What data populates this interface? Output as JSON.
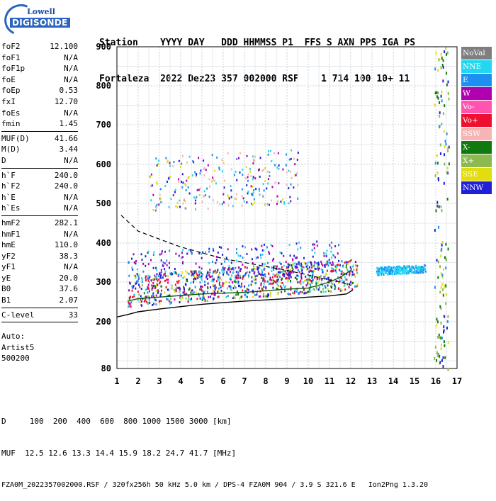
{
  "logo": {
    "line1": "Lowell",
    "line2": "DIGISONDE"
  },
  "header": {
    "row1": "Station    YYYY DAY   DDD HHMMSS P1  FFS S AXN PPS IGA PS",
    "row2": "Fortaleza  2022 Dez23 357 002000 RSF    1 714 100 10+ 11"
  },
  "parameters": [
    {
      "name": "foF2",
      "value": "12.100"
    },
    {
      "name": "foF1",
      "value": "N/A"
    },
    {
      "name": "foF1p",
      "value": "N/A"
    },
    {
      "name": "foE",
      "value": "N/A"
    },
    {
      "name": "foEp",
      "value": "0.53"
    },
    {
      "name": "fxI",
      "value": "12.70"
    },
    {
      "name": "foEs",
      "value": "N/A"
    },
    {
      "name": "fmin",
      "value": "1.45"
    },
    {
      "sep": true
    },
    {
      "name": "MUF(D)",
      "value": "41.66"
    },
    {
      "name": "M(D)",
      "value": "3.44"
    },
    {
      "name": "D",
      "value": "N/A"
    },
    {
      "sep": true
    },
    {
      "name": "h`F",
      "value": "240.0"
    },
    {
      "name": "h`F2",
      "value": "240.0"
    },
    {
      "name": "h`E",
      "value": "N/A"
    },
    {
      "name": "h`Es",
      "value": "N/A"
    },
    {
      "sep": true
    },
    {
      "name": "hmF2",
      "value": "282.1"
    },
    {
      "name": "hmF1",
      "value": "N/A"
    },
    {
      "name": "hmE",
      "value": "110.0"
    },
    {
      "name": "yF2",
      "value": "38.3"
    },
    {
      "name": "yF1",
      "value": "N/A"
    },
    {
      "name": "yE",
      "value": "20.0"
    },
    {
      "name": "B0",
      "value": "37.6"
    },
    {
      "name": "B1",
      "value": "2.07"
    },
    {
      "sep": true
    },
    {
      "name": "C-level",
      "value": "33"
    },
    {
      "sep": true
    },
    {
      "gap": true
    }
  ],
  "auto": [
    "Auto:",
    "Artist5",
    "500200"
  ],
  "legend": [
    {
      "label": "NoVal",
      "color": "#7f7f7f"
    },
    {
      "label": "NNE",
      "color": "#22d8f0"
    },
    {
      "label": "E",
      "color": "#1e8ff0"
    },
    {
      "label": "W",
      "color": "#b000b0"
    },
    {
      "label": "Vo-",
      "color": "#ff55b0"
    },
    {
      "label": "Vo+",
      "color": "#ee1030"
    },
    {
      "label": "SSW",
      "color": "#f6b4b4"
    },
    {
      "label": "X-",
      "color": "#107a10"
    },
    {
      "label": "X+",
      "color": "#8cba50"
    },
    {
      "label": "SSE",
      "color": "#e2dc10"
    },
    {
      "label": "NNW",
      "color": "#2020d8"
    }
  ],
  "footer": {
    "line1": "D     100  200  400  600  800 1000 1500 3000 [km]",
    "line2": "MUF  12.5 12.6 13.3 14.4 15.9 18.2 24.7 41.7 [MHz]",
    "line3": "FZA0M_2022357002000.RSF / 320fx256h 50 kHz 5.0 km / DPS-4 FZA0M 904 / 3.9 S 321.6 E   Ion2Png 1.3.20"
  },
  "chart_data": {
    "type": "scatter",
    "title": "",
    "xlabel": "",
    "ylabel": "",
    "xlim": [
      1,
      17
    ],
    "ylim": [
      80,
      900
    ],
    "x_ticks": [
      1,
      2,
      3,
      4,
      5,
      6,
      7,
      8,
      9,
      10,
      11,
      12,
      13,
      14,
      15,
      16,
      17
    ],
    "y_ticks": [
      80,
      200,
      300,
      400,
      500,
      600,
      700,
      800,
      900
    ],
    "y_scale": "nonlinear (compressed toward bottom)",
    "grid": true,
    "legend_position": "right",
    "series": [
      {
        "name": "O-trace profile (dashed)",
        "style": "dashed",
        "color": "#000000",
        "x": [
          1.2,
          2,
          3,
          4,
          5,
          6,
          7,
          8,
          9,
          10,
          11,
          11.5,
          12.0
        ],
        "y": [
          470,
          430,
          410,
          390,
          375,
          360,
          350,
          340,
          330,
          318,
          305,
          300,
          292
        ]
      },
      {
        "name": "h'F trace (solid)",
        "style": "solid",
        "color": "#000000",
        "x": [
          1.0,
          1.5,
          2,
          3,
          4,
          5,
          6,
          7,
          8,
          9,
          10,
          11,
          11.8,
          12.1
        ],
        "y": [
          212,
          218,
          225,
          232,
          238,
          244,
          248,
          252,
          255,
          258,
          262,
          265,
          270,
          280
        ]
      },
      {
        "name": "Fitted F2 trace",
        "style": "solid",
        "color": "#0a5a0a",
        "x": [
          1.5,
          2,
          3,
          4,
          5,
          6,
          7,
          8,
          9,
          10,
          10.5,
          11,
          11.5,
          12.0
        ],
        "y": [
          252,
          258,
          262,
          266,
          270,
          272,
          274,
          278,
          282,
          285,
          292,
          300,
          312,
          330
        ]
      }
    ],
    "echo_regions": [
      {
        "desc": "dense F-layer echoes",
        "color_class": "multi",
        "x_range": [
          1.5,
          12.3
        ],
        "y_range": [
          240,
          320
        ]
      },
      {
        "desc": "upper F echoes",
        "color_class": "NNW",
        "x_range": [
          1.5,
          11.5
        ],
        "y_range": [
          300,
          380
        ]
      },
      {
        "desc": "multi-hop echoes",
        "color_class": "E",
        "x_range": [
          2.5,
          9.5
        ],
        "y_range": [
          480,
          620
        ]
      },
      {
        "desc": "spread near 13.5-15.5 MHz",
        "color_class": "NNE",
        "x_range": [
          13.2,
          15.5
        ],
        "y_range": [
          320,
          340
        ]
      }
    ]
  }
}
